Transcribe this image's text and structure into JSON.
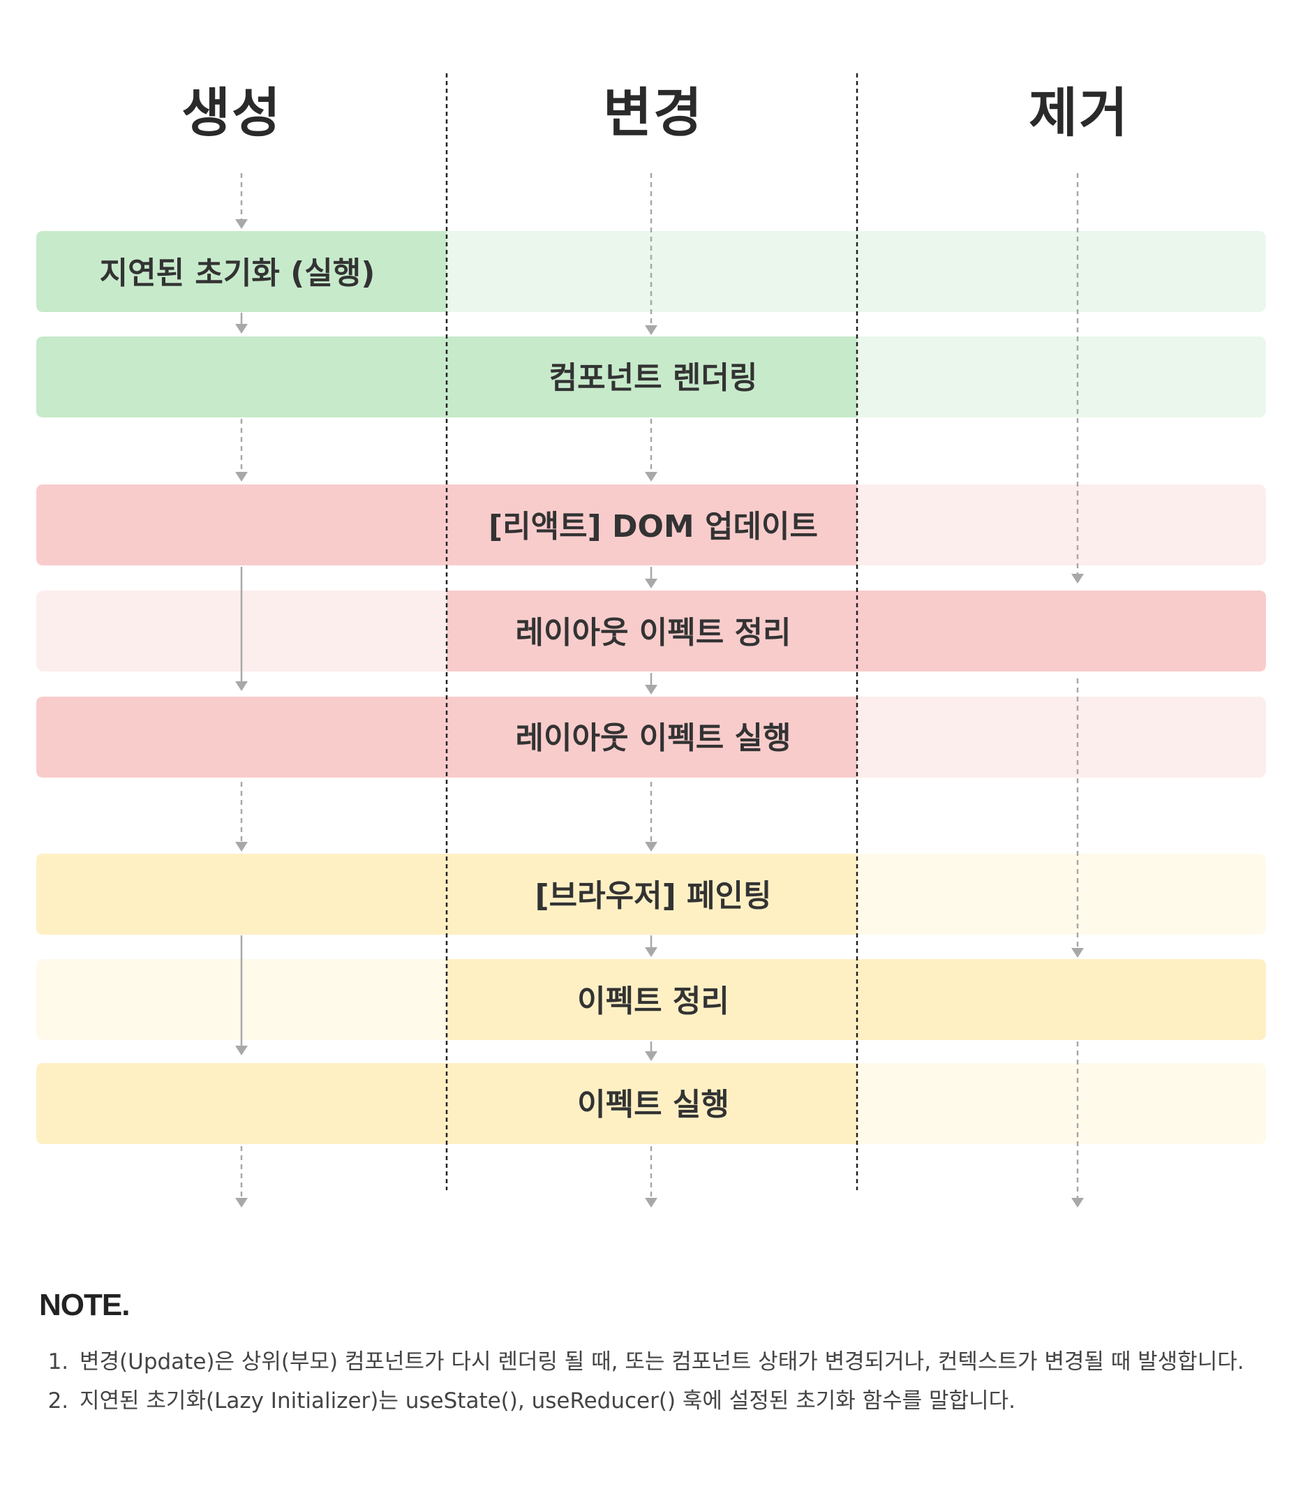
{
  "columns": [
    "생성",
    "변경",
    "제거"
  ],
  "bands": [
    {
      "label": "지연된 초기화 (실행)",
      "group": "green",
      "active": [
        true,
        false,
        false
      ]
    },
    {
      "label": "컴포넌트 렌더링",
      "group": "green",
      "active": [
        true,
        true,
        false
      ]
    },
    {
      "label": "[리액트] DOM 업데이트",
      "group": "red",
      "active": [
        true,
        true,
        false
      ]
    },
    {
      "label": "레이아웃 이펙트 정리",
      "group": "red",
      "active": [
        false,
        true,
        true
      ]
    },
    {
      "label": "레이아웃 이펙트 실행",
      "group": "red",
      "active": [
        true,
        true,
        false
      ]
    },
    {
      "label": "[브라우저] 페인팅",
      "group": "yellow",
      "active": [
        true,
        true,
        false
      ]
    },
    {
      "label": "이펙트 정리",
      "group": "yellow",
      "active": [
        false,
        true,
        true
      ]
    },
    {
      "label": "이펙트 실행",
      "group": "yellow",
      "active": [
        true,
        true,
        false
      ]
    }
  ],
  "colors": {
    "green": {
      "strong": "#c7eacb",
      "light": "#ebf7ec"
    },
    "red": {
      "strong": "#f9cccc",
      "light": "#fdeeee"
    },
    "yellow": {
      "strong": "#fff0c4",
      "light": "#fffaea"
    },
    "divider": "#222222",
    "arrow": "#a8a8a8"
  },
  "note": {
    "title": "NOTE.",
    "items": [
      "변경(Update)은 상위(부모) 컴포넌트가 다시 렌더링 될 때, 또는 컴포넌트 상태가 변경되거나, 컨텍스트가 변경될 때 발생합니다.",
      "지연된 초기화(Lazy Initializer)는 useState(), useReducer() 훅에 설정된 초기화 함수를 말합니다."
    ]
  }
}
